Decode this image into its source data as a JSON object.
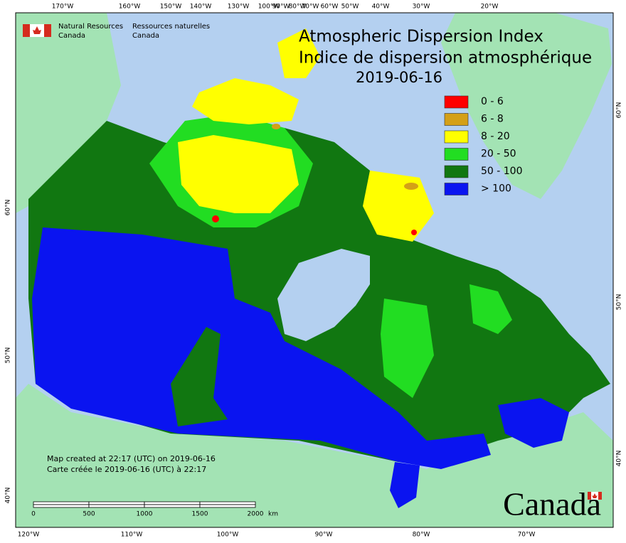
{
  "header": {
    "agency_en": [
      "Natural Resources",
      "Canada"
    ],
    "agency_fr": [
      "Ressources naturelles",
      "Canada"
    ]
  },
  "title": {
    "en": "Atmospheric Dispersion Index",
    "fr": "Indice de dispersion atmosphérique",
    "date": "2019-06-16"
  },
  "legend": [
    {
      "label": "0 - 6",
      "color": "#ff0000"
    },
    {
      "label": "6 - 8",
      "color": "#d4a017"
    },
    {
      "label": "8 - 20",
      "color": "#ffff00"
    },
    {
      "label": "20 - 50",
      "color": "#22dd22"
    },
    {
      "label": "50 - 100",
      "color": "#117711"
    },
    {
      "label": "> 100",
      "color": "#0a14f0"
    }
  ],
  "graticule": {
    "top": [
      "170°W",
      "160°W",
      "150°W",
      "140°W",
      "130°W",
      "100°W",
      "90°W",
      "80°W",
      "70°W",
      "60°W",
      "50°W",
      "40°W",
      "30°W",
      "20°W"
    ],
    "bottom": [
      "120°W",
      "110°W",
      "100°W",
      "90°W",
      "80°W",
      "70°W"
    ],
    "left": [
      "60°N",
      "50°N",
      "40°N"
    ],
    "right": [
      "60°N",
      "50°N",
      "40°N"
    ]
  },
  "footer": {
    "created_en": "Map created at 22:17 (UTC) on 2019-06-16",
    "created_fr": "Carte créée le 2019-06-16 (UTC) à 22:17"
  },
  "scale": {
    "ticks": [
      "0",
      "500",
      "1000",
      "1500",
      "2000"
    ],
    "unit": "km"
  },
  "wordmark": "Canada"
}
